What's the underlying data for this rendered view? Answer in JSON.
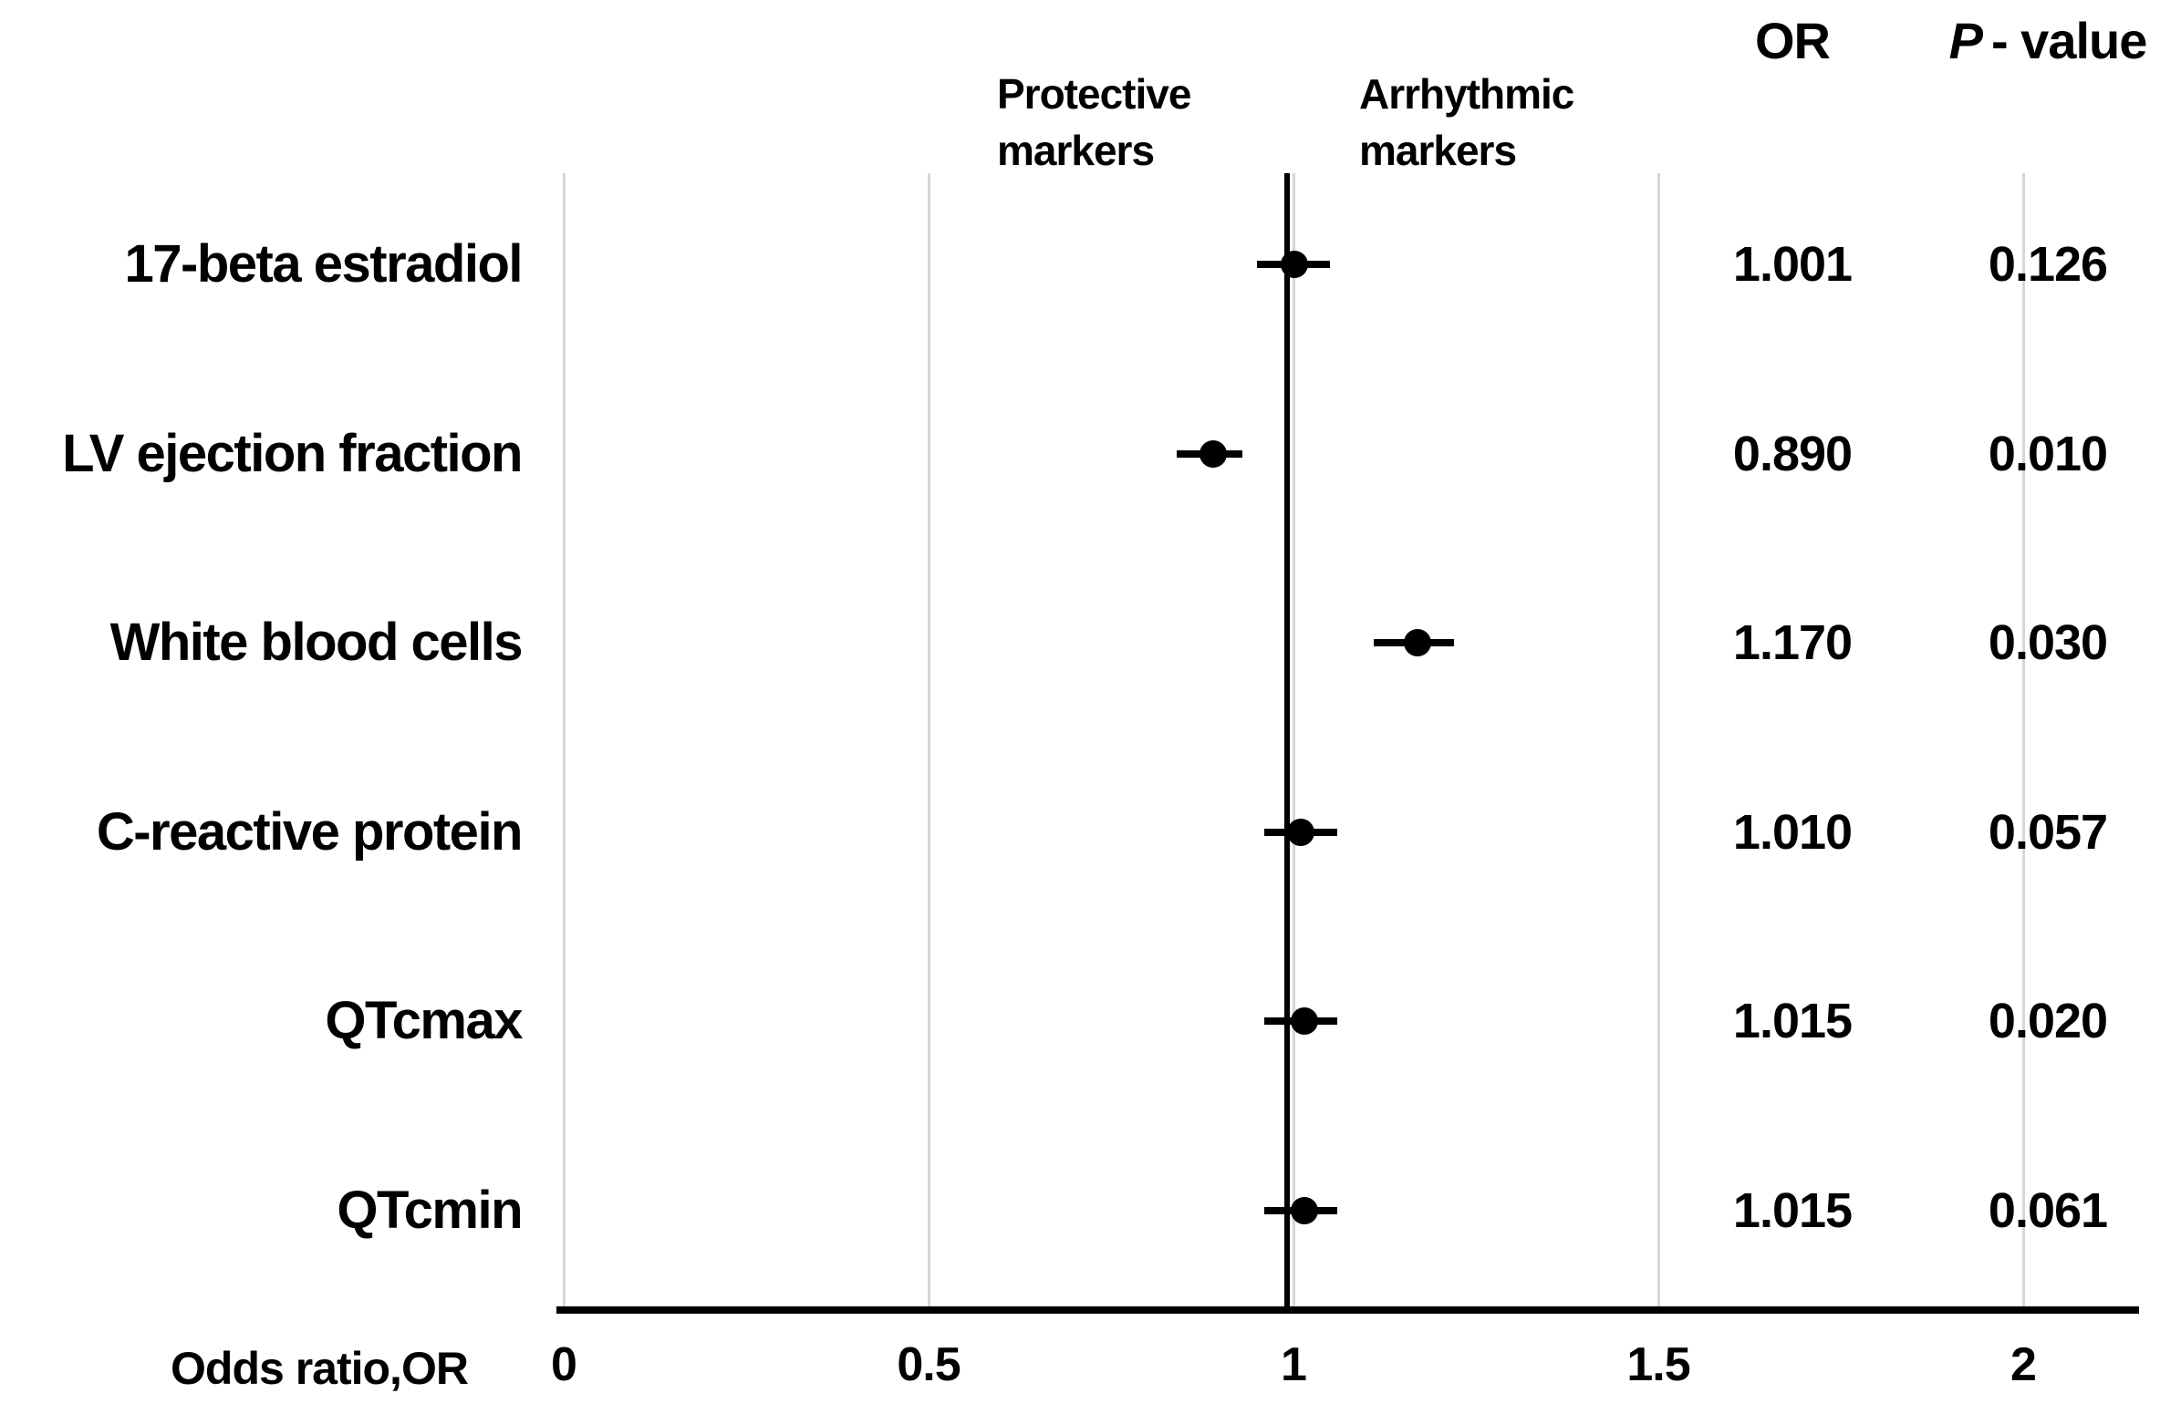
{
  "figure": {
    "or_header": "OR",
    "p_header_italic": "P",
    "p_header_rest": "- value",
    "protective_line1": "Protective",
    "protective_line2": "markers",
    "arrhythmic_line1": "Arrhythmic",
    "arrhythmic_line2": "markers",
    "axis_label": "Odds ratio,OR"
  },
  "colors": {
    "background": "#ffffff",
    "text": "#000000",
    "gridline": "#d6d6d6",
    "reference_line": "#000000",
    "marker": "#000000"
  },
  "chart_data": {
    "type": "forest",
    "title": "",
    "xlabel": "Odds ratio,OR",
    "ylabel": "",
    "x_range": [
      0,
      2.17
    ],
    "x_ticks": [
      0,
      0.5,
      1,
      1.5,
      2
    ],
    "x_tick_labels": [
      "0",
      "0.5",
      "1",
      "1.5",
      "2"
    ],
    "grid": "vertical-only",
    "reference_line_x": 1,
    "column_headers": {
      "or": "OR",
      "p_value": "P - value"
    },
    "region_annotations": [
      {
        "text": "Protective markers",
        "side": "left-of-reference"
      },
      {
        "text": "Arrhythmic markers",
        "side": "right-of-reference"
      }
    ],
    "rows": [
      {
        "label": "17-beta estradiol",
        "or": 1.001,
        "ci": [
          0.95,
          1.05
        ],
        "or_text": "1.001",
        "p_text": "0.126"
      },
      {
        "label": "LV ejection fraction",
        "or": 0.89,
        "ci": [
          0.84,
          0.93
        ],
        "or_text": "0.890",
        "p_text": "0.010"
      },
      {
        "label": "White blood cells",
        "or": 1.17,
        "ci": [
          1.11,
          1.22
        ],
        "or_text": "1.170",
        "p_text": "0.030"
      },
      {
        "label": "C-reactive protein",
        "or": 1.01,
        "ci": [
          0.96,
          1.06
        ],
        "or_text": "1.010",
        "p_text": "0.057"
      },
      {
        "label": "QTcmax",
        "or": 1.015,
        "ci": [
          0.96,
          1.06
        ],
        "or_text": "1.015",
        "p_text": "0.020"
      },
      {
        "label": "QTcmin",
        "or": 1.015,
        "ci": [
          0.96,
          1.06
        ],
        "or_text": "1.015",
        "p_text": "0.061"
      }
    ]
  }
}
